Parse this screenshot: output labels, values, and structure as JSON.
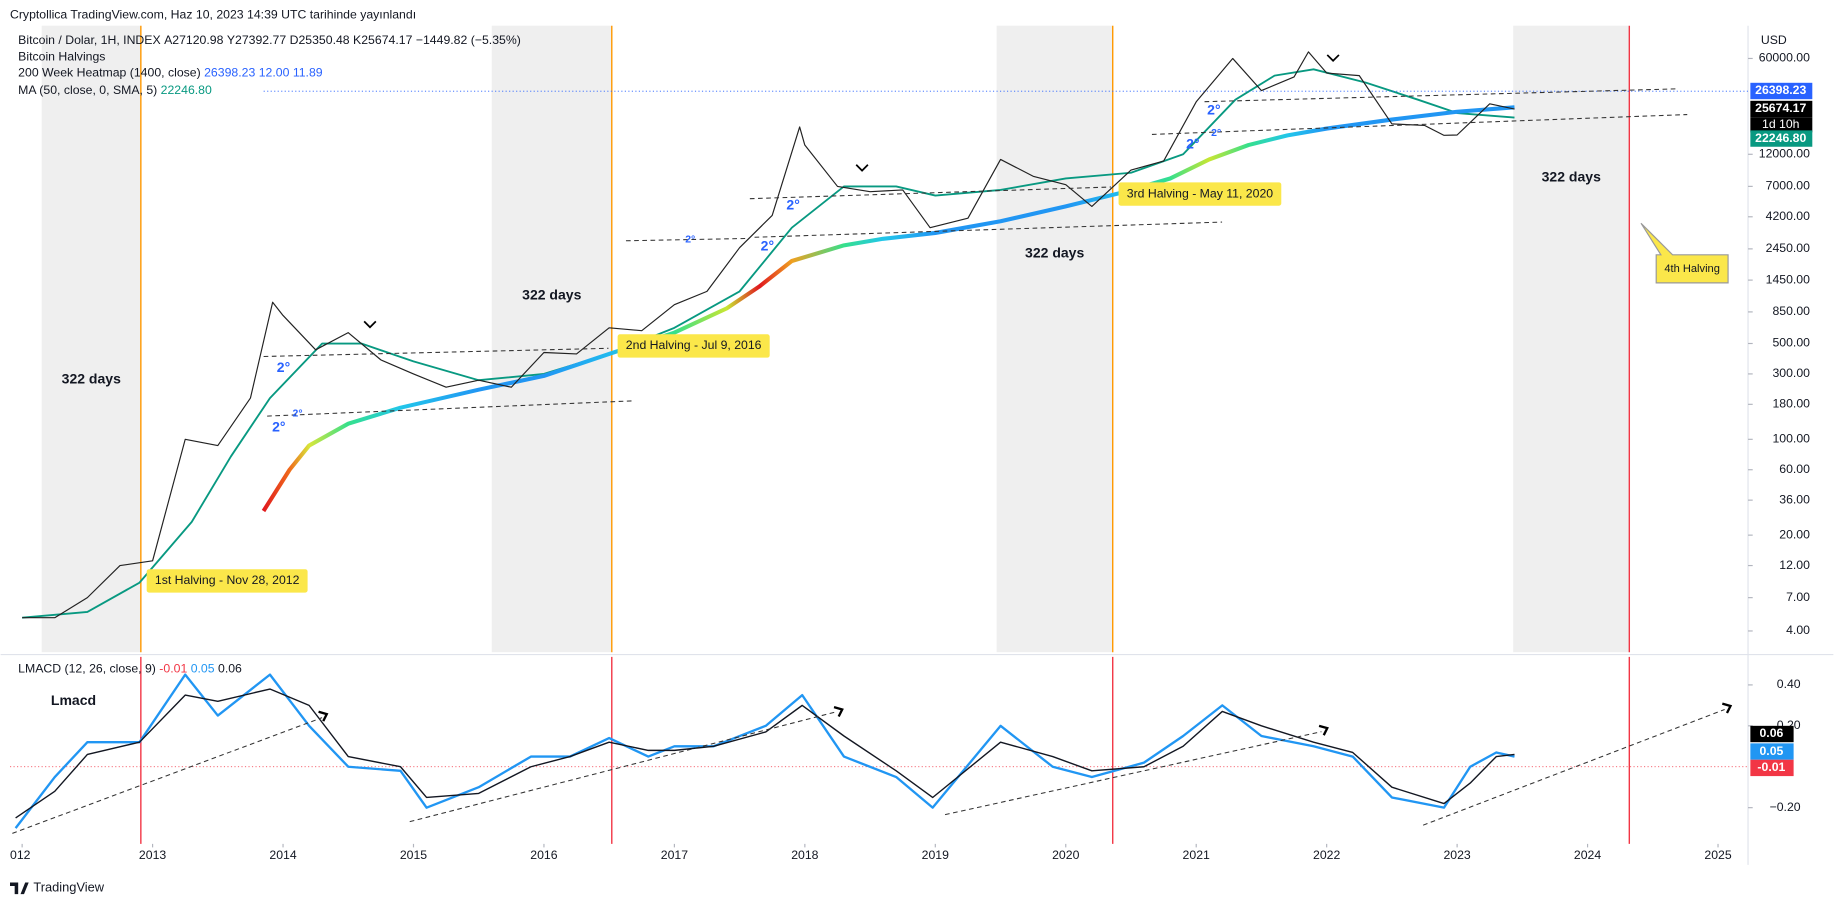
{
  "header": {
    "publisher": "Cryptollica TradingView.com, Haz 10, 2023 14:39 UTC tarihinde yayınlandı"
  },
  "chart_data": [
    {
      "type": "line",
      "title": "Bitcoin / Dolar, 1H, INDEX",
      "legend": {
        "open": "A27120.98",
        "high": "Y27392.77",
        "low": "D25350.48",
        "close": "K25674.17",
        "change": "−1449.82 (−5.35%)",
        "indicators": [
          {
            "name": "Bitcoin Halvings"
          },
          {
            "name": "200 Week Heatmap (1400, close)",
            "values": [
              "26398.23",
              "12.00",
              "11.89"
            ],
            "color": "#2962ff"
          },
          {
            "name": "MA (50, close, 0, SMA, 5)",
            "values": [
              "22246.80"
            ],
            "color": "#089981"
          }
        ]
      },
      "currency": "USD",
      "log_scale": true,
      "grid": false,
      "xlim": [
        2011.907,
        2025.23
      ],
      "ylim": [
        2.8,
        104000
      ],
      "yticks": [
        {
          "value": 60000,
          "label": "60000.00"
        },
        {
          "value": 12000,
          "label": "12000.00"
        },
        {
          "value": 7000,
          "label": "7000.00"
        },
        {
          "value": 4200,
          "label": "4200.00"
        },
        {
          "value": 2450,
          "label": "2450.00"
        },
        {
          "value": 1450,
          "label": "1450.00"
        },
        {
          "value": 850,
          "label": "850.00"
        },
        {
          "value": 500,
          "label": "500.00"
        },
        {
          "value": 300,
          "label": "300.00"
        },
        {
          "value": 180,
          "label": "180.00"
        },
        {
          "value": 100,
          "label": "100.00"
        },
        {
          "value": 60,
          "label": "60.00"
        },
        {
          "value": 36,
          "label": "36.00"
        },
        {
          "value": 20,
          "label": "20.00"
        },
        {
          "value": 12,
          "label": "12.00"
        },
        {
          "value": 7,
          "label": "7.00"
        },
        {
          "value": 4,
          "label": "4.00"
        }
      ],
      "xticks": [
        {
          "value": 2012,
          "label": "012"
        },
        2013,
        2014,
        2015,
        2016,
        2017,
        2018,
        2019,
        2020,
        2021,
        2022,
        2023,
        2024,
        2025
      ],
      "series": [
        {
          "name": "Bitcoin / Dolar",
          "color": "#222222",
          "x": [
            2012.0,
            2012.25,
            2012.5,
            2012.75,
            2013.0,
            2013.25,
            2013.5,
            2013.75,
            2013.92,
            2014.0,
            2014.25,
            2014.5,
            2014.75,
            2015.0,
            2015.25,
            2015.5,
            2015.75,
            2016.0,
            2016.25,
            2016.5,
            2016.75,
            2017.0,
            2017.25,
            2017.5,
            2017.75,
            2017.96,
            2018.0,
            2018.25,
            2018.5,
            2018.75,
            2018.96,
            2019.25,
            2019.5,
            2019.75,
            2020.0,
            2020.2,
            2020.5,
            2020.75,
            2021.0,
            2021.28,
            2021.5,
            2021.75,
            2021.86,
            2022.0,
            2022.25,
            2022.5,
            2022.75,
            2022.9,
            2023.0,
            2023.25,
            2023.44
          ],
          "values": [
            5,
            5,
            7,
            12,
            13,
            100,
            90,
            200,
            1000,
            800,
            450,
            600,
            380,
            300,
            240,
            270,
            240,
            430,
            420,
            650,
            620,
            960,
            1200,
            2500,
            4300,
            19000,
            14000,
            7000,
            6400,
            6600,
            3500,
            4100,
            11000,
            8300,
            7200,
            5000,
            9200,
            10700,
            29000,
            60000,
            35000,
            44000,
            67000,
            47000,
            45000,
            20000,
            19500,
            16500,
            16600,
            28000,
            25674.17
          ]
        },
        {
          "name": "200 Week Heatmap",
          "color": "#2196f3",
          "x": [
            2013.85,
            2014.05,
            2014.2,
            2014.5,
            2014.9,
            2015.5,
            2016.0,
            2016.5,
            2017.0,
            2017.4,
            2017.65,
            2017.9,
            2018.3,
            2018.6,
            2019.0,
            2019.5,
            2020.0,
            2020.4,
            2020.8,
            2021.1,
            2021.4,
            2021.7,
            2022.0,
            2022.5,
            2023.0,
            2023.44
          ],
          "values": [
            30,
            60,
            90,
            130,
            170,
            230,
            290,
            420,
            600,
            900,
            1300,
            2000,
            2600,
            2900,
            3200,
            3900,
            5000,
            6200,
            8000,
            11000,
            14000,
            16500,
            18500,
            21500,
            24500,
            26398.23
          ],
          "colors": [
            "#e0191f",
            "#f06a1a",
            "#d8e63a",
            "#35e08c",
            "#22c6ea",
            "#2196f3",
            "#2196f3",
            "#21b9ee",
            "#35e08c",
            "#c8e632",
            "#e0191f",
            "#f0a020",
            "#35e08c",
            "#22c6ea",
            "#2196f3",
            "#2196f3",
            "#2196f3",
            "#21b9ee",
            "#35e08c",
            "#c8e632",
            "#35e08c",
            "#22c6ea",
            "#2196f3",
            "#2196f3",
            "#2196f3",
            "#2196f3"
          ]
        },
        {
          "name": "MA 50",
          "color": "#089981",
          "x": [
            2012.0,
            2012.5,
            2012.9,
            2013.3,
            2013.6,
            2013.9,
            2014.3,
            2014.6,
            2015.0,
            2015.5,
            2016.0,
            2016.5,
            2017.0,
            2017.5,
            2017.9,
            2018.3,
            2018.7,
            2019.0,
            2019.5,
            2020.0,
            2020.5,
            2020.9,
            2021.3,
            2021.6,
            2021.9,
            2022.3,
            2022.7,
            2023.0,
            2023.44
          ],
          "values": [
            5,
            5.5,
            9,
            25,
            75,
            200,
            500,
            500,
            370,
            270,
            300,
            420,
            650,
            1200,
            3500,
            7000,
            7000,
            6000,
            6600,
            8000,
            8800,
            12000,
            30000,
            45000,
            50000,
            40000,
            30000,
            24000,
            22246.8
          ]
        }
      ],
      "price_labels": [
        {
          "value": 26398.23,
          "label": "26398.23",
          "color": "#2962ff"
        },
        {
          "value": 25674.17,
          "label": "25674.17",
          "color": "#000000"
        },
        {
          "value": 22246.8,
          "label": "22246.80",
          "color": "#089981"
        }
      ],
      "countdown": "1d 10h",
      "halvings": [
        {
          "x": 2012.91,
          "label": "1st Halving - Nov 28, 2012",
          "color": "#ff9800"
        },
        {
          "x": 2016.52,
          "label": "2nd Halving - Jul 9, 2016",
          "color": "#ff9800"
        },
        {
          "x": 2020.36,
          "label": "3rd Halving - May 11, 2020",
          "color": "#ff9800"
        },
        {
          "x": 2024.32,
          "label": "4th Halving",
          "color": "#f23645"
        }
      ],
      "bands": [
        {
          "start": 2012.15,
          "label": "322 days"
        },
        {
          "start": 2015.6,
          "label": "322 days"
        },
        {
          "start": 2019.47,
          "label": "322 days"
        },
        {
          "start": 2023.43,
          "label": "322 days"
        }
      ],
      "annotations": [
        "2°",
        "2°",
        "2°",
        "2°",
        "2°",
        "2°",
        "2°",
        "2°",
        "2°"
      ]
    },
    {
      "type": "line",
      "title": "Lmacd",
      "legend": {
        "name": "LMACD (12, 26, close, 9)",
        "values": [
          "-0.01",
          "0.05",
          "0.06"
        ],
        "colors": [
          "#f23645",
          "#2196f3",
          "#131722"
        ]
      },
      "ylim": [
        -0.377,
        0.537
      ],
      "yticks": [
        {
          "value": 0.4,
          "label": "0.40"
        },
        {
          "value": 0.2,
          "label": "0.20"
        },
        {
          "value": -0.2,
          "label": "−0.20"
        }
      ],
      "halving_color": "#f23645",
      "series": [
        {
          "name": "MACD",
          "color": "#2196f3",
          "x": [
            2011.95,
            2012.25,
            2012.5,
            2012.9,
            2013.25,
            2013.5,
            2013.9,
            2014.2,
            2014.5,
            2014.9,
            2015.1,
            2015.5,
            2015.9,
            2016.2,
            2016.5,
            2016.8,
            2017.0,
            2017.3,
            2017.7,
            2017.98,
            2018.3,
            2018.7,
            2018.98,
            2019.5,
            2019.9,
            2020.2,
            2020.6,
            2020.9,
            2021.2,
            2021.5,
            2021.9,
            2022.2,
            2022.5,
            2022.9,
            2023.1,
            2023.3,
            2023.44
          ],
          "values": [
            -0.3,
            -0.05,
            0.12,
            0.12,
            0.45,
            0.25,
            0.45,
            0.2,
            0.0,
            -0.02,
            -0.2,
            -0.1,
            0.05,
            0.05,
            0.14,
            0.05,
            0.1,
            0.1,
            0.2,
            0.35,
            0.05,
            -0.05,
            -0.2,
            0.2,
            0.0,
            -0.05,
            0.02,
            0.15,
            0.3,
            0.15,
            0.1,
            0.05,
            -0.15,
            -0.2,
            0.0,
            0.07,
            0.05
          ]
        },
        {
          "name": "Signal",
          "color": "#131722",
          "x": [
            2011.95,
            2012.25,
            2012.5,
            2012.9,
            2013.25,
            2013.5,
            2013.9,
            2014.2,
            2014.5,
            2014.9,
            2015.1,
            2015.5,
            2015.9,
            2016.2,
            2016.5,
            2016.8,
            2017.0,
            2017.3,
            2017.7,
            2017.98,
            2018.3,
            2018.7,
            2018.98,
            2019.5,
            2019.9,
            2020.2,
            2020.6,
            2020.9,
            2021.2,
            2021.5,
            2021.9,
            2022.2,
            2022.5,
            2022.9,
            2023.1,
            2023.3,
            2023.44
          ],
          "values": [
            -0.25,
            -0.12,
            0.06,
            0.12,
            0.35,
            0.32,
            0.38,
            0.3,
            0.05,
            0.0,
            -0.15,
            -0.13,
            0.0,
            0.05,
            0.12,
            0.08,
            0.08,
            0.1,
            0.17,
            0.3,
            0.15,
            -0.02,
            -0.15,
            0.12,
            0.05,
            -0.02,
            0.0,
            0.1,
            0.27,
            0.2,
            0.12,
            0.07,
            -0.1,
            -0.18,
            -0.08,
            0.05,
            0.06
          ]
        }
      ],
      "value_badges": [
        {
          "value": 0.06,
          "color": "#000000"
        },
        {
          "value": 0.05,
          "color": "#2196f3"
        },
        {
          "value": -0.01,
          "color": "#f23645"
        }
      ]
    }
  ],
  "footer": {
    "brand": "TradingView"
  }
}
